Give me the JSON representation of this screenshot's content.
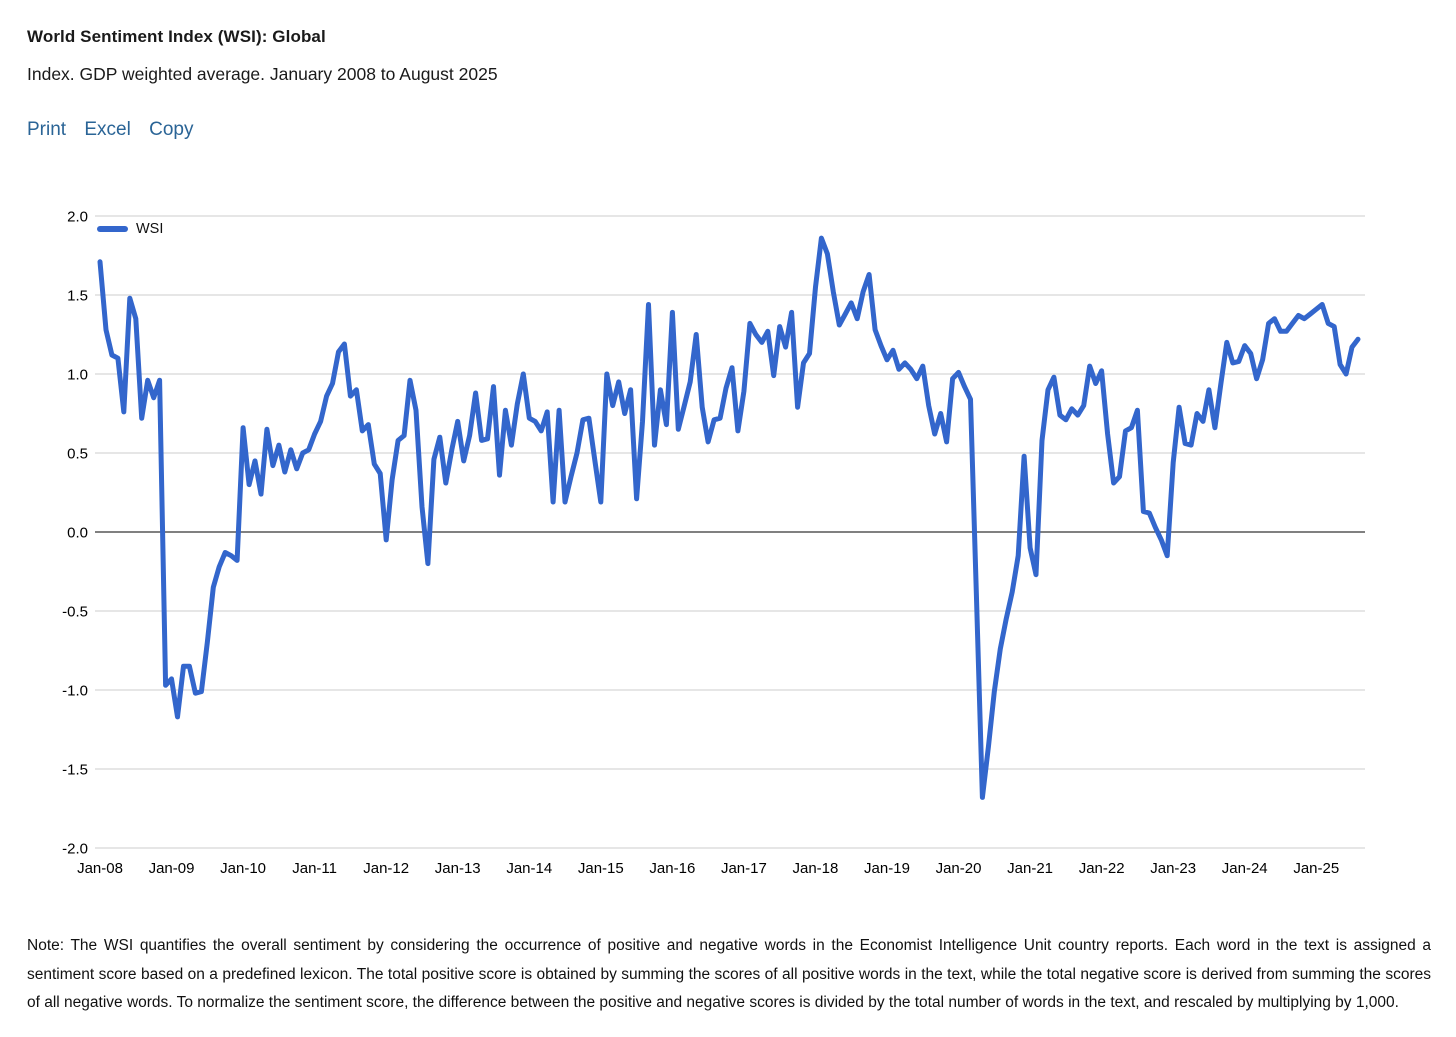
{
  "header": {
    "title": "World Sentiment Index (WSI): Global",
    "subtitle": "Index. GDP weighted average. January 2008 to August 2025"
  },
  "toolbar": {
    "print_label": "Print",
    "excel_label": "Excel",
    "copy_label": "Copy",
    "link_color": "#2a6496"
  },
  "chart_data": {
    "type": "line",
    "title": "World Sentiment Index (WSI): Global",
    "series_name": "WSI",
    "line_color": "#3366cc",
    "grid": true,
    "grid_color": "#cccccc",
    "zero_line_color": "#000000",
    "legend_position": "top-left-inside",
    "frequency": "monthly",
    "x_start": "Jan-08",
    "x_end": "Aug-25",
    "ylim": [
      -2.0,
      2.0
    ],
    "y_ticks": [
      2.0,
      1.5,
      1.0,
      0.5,
      0.0,
      -0.5,
      -1.0,
      -1.5,
      -2.0
    ],
    "y_tick_labels": [
      "2.0",
      "1.5",
      "1.0",
      "0.5",
      "0.0",
      "-0.5",
      "-1.0",
      "-1.5",
      "-2.0"
    ],
    "x_tick_labels": [
      "Jan-08",
      "Jan-09",
      "Jan-10",
      "Jan-11",
      "Jan-12",
      "Jan-13",
      "Jan-14",
      "Jan-15",
      "Jan-16",
      "Jan-17",
      "Jan-18",
      "Jan-19",
      "Jan-20",
      "Jan-21",
      "Jan-22",
      "Jan-23",
      "Jan-24",
      "Jan-25"
    ],
    "x_tick_month_index": [
      0,
      12,
      24,
      36,
      48,
      60,
      72,
      84,
      96,
      108,
      120,
      132,
      144,
      156,
      168,
      180,
      192,
      204
    ],
    "values": [
      1.71,
      1.28,
      1.12,
      1.1,
      0.76,
      1.48,
      1.35,
      0.72,
      0.96,
      0.85,
      0.96,
      -0.97,
      -0.93,
      -1.17,
      -0.85,
      -0.85,
      -1.02,
      -1.01,
      -0.7,
      -0.35,
      -0.22,
      -0.13,
      -0.15,
      -0.18,
      0.66,
      0.3,
      0.45,
      0.24,
      0.65,
      0.42,
      0.55,
      0.38,
      0.52,
      0.4,
      0.5,
      0.52,
      0.62,
      0.7,
      0.86,
      0.94,
      1.14,
      1.19,
      0.86,
      0.9,
      0.64,
      0.68,
      0.43,
      0.37,
      -0.05,
      0.33,
      0.58,
      0.61,
      0.96,
      0.77,
      0.16,
      -0.2,
      0.46,
      0.6,
      0.31,
      0.52,
      0.7,
      0.45,
      0.61,
      0.88,
      0.58,
      0.59,
      0.92,
      0.36,
      0.77,
      0.55,
      0.81,
      1.0,
      0.72,
      0.7,
      0.64,
      0.76,
      0.19,
      0.77,
      0.19,
      0.35,
      0.5,
      0.71,
      0.72,
      0.45,
      0.19,
      1.0,
      0.8,
      0.95,
      0.75,
      0.9,
      0.21,
      0.7,
      1.44,
      0.55,
      0.9,
      0.68,
      1.39,
      0.65,
      0.8,
      0.95,
      1.25,
      0.79,
      0.57,
      0.71,
      0.72,
      0.91,
      1.04,
      0.64,
      0.89,
      1.32,
      1.25,
      1.2,
      1.27,
      0.99,
      1.3,
      1.17,
      1.39,
      0.79,
      1.07,
      1.13,
      1.55,
      1.86,
      1.76,
      1.52,
      1.31,
      1.38,
      1.45,
      1.35,
      1.52,
      1.63,
      1.28,
      1.18,
      1.09,
      1.15,
      1.03,
      1.07,
      1.03,
      0.97,
      1.05,
      0.8,
      0.62,
      0.75,
      0.57,
      0.97,
      1.01,
      0.92,
      0.84,
      -0.4,
      -1.68,
      -1.36,
      -1.01,
      -0.74,
      -0.55,
      -0.38,
      -0.15,
      0.48,
      -0.1,
      -0.27,
      0.58,
      0.9,
      0.98,
      0.74,
      0.71,
      0.78,
      0.74,
      0.8,
      1.05,
      0.94,
      1.02,
      0.62,
      0.31,
      0.35,
      0.64,
      0.66,
      0.77,
      0.13,
      0.12,
      0.03,
      -0.05,
      -0.15,
      0.44,
      0.79,
      0.56,
      0.55,
      0.75,
      0.7,
      0.9,
      0.66,
      0.94,
      1.2,
      1.07,
      1.08,
      1.18,
      1.13,
      0.97,
      1.09,
      1.32,
      1.35,
      1.27,
      1.27,
      1.32,
      1.37,
      1.35,
      1.38,
      1.41,
      1.44,
      1.32,
      1.3,
      1.06,
      1.0,
      1.17,
      1.22
    ]
  },
  "note": {
    "text": "Note: The WSI quantifies the overall sentiment by considering the occurrence of positive and negative words in the Economist Intelligence Unit country reports. Each word in the text is assigned a sentiment score based on a predefined lexicon. The total positive score is obtained by summing the scores of all positive words in the text, while the total negative score is derived from summing the scores of all negative words. To normalize the sentiment score, the difference between the positive and negative scores is divided by the total number of words in the text, and rescaled by multiplying by 1,000."
  }
}
